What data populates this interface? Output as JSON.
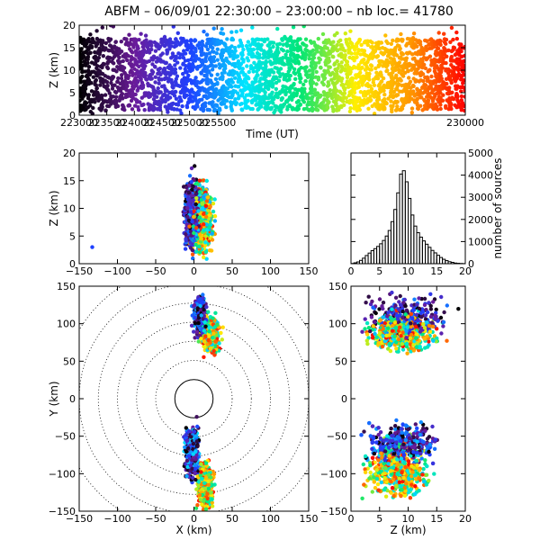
{
  "title": "ABFM – 06/09/01 22:30:00 – 23:00:00 – nb loc.=  41780",
  "chart_data": [
    {
      "id": "time-height",
      "type": "scatter",
      "xlabel": "Time (UT)",
      "ylabel": "Z (km)",
      "xlim": [
        223000,
        230000
      ],
      "ylim": [
        0,
        20
      ],
      "xticks": [
        223000,
        223500,
        224000,
        224500,
        225000,
        225500,
        230000
      ],
      "xtick_labels": [
        "223000",
        "223500",
        "224000",
        "224500",
        "225000",
        "225500",
        "230000"
      ],
      "yticks": [
        0,
        5,
        10,
        15,
        20
      ],
      "ytick_labels": [
        "0",
        "5",
        "10",
        "15",
        "20"
      ],
      "color_by": "time",
      "colormap": [
        "#000000",
        "#6a1b9a",
        "#1e40ff",
        "#00e5ff",
        "#00e676",
        "#ffee00",
        "#ff9800",
        "#ff0000"
      ],
      "core_z_range": [
        1,
        17
      ]
    },
    {
      "id": "x-height",
      "type": "scatter",
      "xlabel": "",
      "ylabel": "Z (km)",
      "xlim": [
        -150,
        150
      ],
      "ylim": [
        0,
        20
      ],
      "xticks": [
        -150,
        -100,
        -50,
        0,
        50,
        100,
        150
      ],
      "xtick_labels": [
        "−150",
        "−100",
        "−50",
        "0",
        "50",
        "100",
        "150"
      ],
      "yticks": [
        0,
        5,
        10,
        15,
        20
      ],
      "ytick_labels": [
        "0",
        "5",
        "10",
        "15",
        "20"
      ],
      "clusters": [
        {
          "x_range": [
            -20,
            45
          ],
          "z_range": [
            0,
            19
          ]
        }
      ],
      "outliers": [
        {
          "x": -133,
          "z": 3
        }
      ]
    },
    {
      "id": "height-histogram",
      "type": "bar",
      "xlabel": "",
      "ylabel": "number of sources",
      "xlim": [
        0,
        20
      ],
      "ylim": [
        0,
        5000
      ],
      "xticks": [
        0,
        5,
        10,
        15,
        20
      ],
      "xtick_labels": [
        "0",
        "5",
        "10",
        "15",
        "20"
      ],
      "yticks": [
        0,
        1000,
        2000,
        3000,
        4000,
        5000
      ],
      "ytick_labels": [
        "0",
        "1000",
        "2000",
        "3000",
        "4000",
        "5000"
      ],
      "bin_width": 0.5,
      "bin_start": 0,
      "values": [
        10,
        40,
        80,
        150,
        250,
        370,
        480,
        590,
        680,
        780,
        900,
        1050,
        1250,
        1500,
        1900,
        2450,
        3200,
        4050,
        4200,
        3700,
        2950,
        2200,
        1700,
        1400,
        1200,
        1030,
        880,
        740,
        600,
        490,
        380,
        280,
        200,
        140,
        90,
        60,
        30,
        18,
        10,
        5
      ]
    },
    {
      "id": "plan-view",
      "type": "scatter",
      "xlabel": "X (km)",
      "ylabel": "Y (km)",
      "xlim": [
        -150,
        150
      ],
      "ylim": [
        -150,
        150
      ],
      "xticks": [
        -150,
        -100,
        -50,
        0,
        50,
        100,
        150
      ],
      "xtick_labels": [
        "−150",
        "−100",
        "−50",
        "0",
        "50",
        "100",
        "150"
      ],
      "yticks": [
        -150,
        -100,
        -50,
        0,
        50,
        100,
        150
      ],
      "ytick_labels": [
        "−150",
        "−100",
        "−50",
        "0",
        "50",
        "100",
        "150"
      ],
      "range_rings_km": [
        25,
        50,
        75,
        100,
        125,
        150,
        175
      ],
      "solid_ring_km": 25,
      "clusters": [
        {
          "x_range": [
            -5,
            45
          ],
          "y_range": [
            40,
            150
          ]
        },
        {
          "x_range": [
            -20,
            30
          ],
          "y_range": [
            -150,
            -25
          ]
        }
      ]
    },
    {
      "id": "height-y",
      "type": "scatter",
      "xlabel": "Z (km)",
      "ylabel": "",
      "xlim": [
        0,
        20
      ],
      "ylim": [
        -150,
        150
      ],
      "xticks": [
        0,
        5,
        10,
        15,
        20
      ],
      "xtick_labels": [
        "0",
        "5",
        "10",
        "15",
        "20"
      ],
      "yticks": [
        -150,
        -100,
        -50,
        0,
        50,
        100,
        150
      ],
      "ytick_labels": [
        "−150",
        "−100",
        "−50",
        "0",
        "50",
        "100",
        "150"
      ],
      "clusters": [
        {
          "z_range": [
            1,
            20
          ],
          "y_range": [
            40,
            150
          ]
        },
        {
          "z_range": [
            1,
            19
          ],
          "y_range": [
            -150,
            -25
          ]
        }
      ]
    }
  ]
}
